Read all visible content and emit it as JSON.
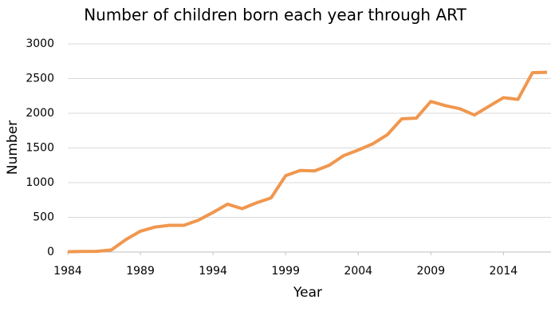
{
  "chart_data": {
    "type": "line",
    "title": "Number of children born each year through ART",
    "x_label": "Year",
    "y_label": "Number",
    "x": [
      1984,
      1985,
      1986,
      1987,
      1988,
      1989,
      1990,
      1991,
      1992,
      1993,
      1994,
      1995,
      1996,
      1997,
      1998,
      1999,
      2000,
      2001,
      2002,
      2003,
      2004,
      2005,
      2006,
      2007,
      2008,
      2009,
      2010,
      2011,
      2012,
      2013,
      2014,
      2015,
      2016,
      2017
    ],
    "series": [
      {
        "name": "Number",
        "color": "#f0974e",
        "values": [
          5,
          8,
          10,
          30,
          180,
          300,
          360,
          385,
          385,
          460,
          570,
          690,
          625,
          710,
          780,
          1100,
          1175,
          1170,
          1250,
          1390,
          1470,
          1560,
          1690,
          1920,
          1930,
          2170,
          2110,
          2065,
          1975,
          2100,
          2225,
          2200,
          2585,
          2590
        ]
      }
    ],
    "xlim": [
      1984,
      2017
    ],
    "xticks": [
      1984,
      1989,
      1994,
      1999,
      2004,
      2009,
      2014
    ],
    "ylim": [
      0,
      3000
    ],
    "yticks": [
      0,
      500,
      1000,
      1500,
      2000,
      2500,
      3000
    ],
    "grid": true
  }
}
